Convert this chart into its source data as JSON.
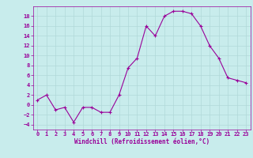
{
  "x": [
    0,
    1,
    2,
    3,
    4,
    5,
    6,
    7,
    8,
    9,
    10,
    11,
    12,
    13,
    14,
    15,
    16,
    17,
    18,
    19,
    20,
    21,
    22,
    23
  ],
  "y": [
    1,
    2,
    -1,
    -0.5,
    -3.5,
    -0.5,
    -0.5,
    -1.5,
    -1.5,
    2,
    7.5,
    9.5,
    16,
    14,
    18,
    19,
    19,
    18.5,
    16,
    12,
    9.5,
    5.5,
    5,
    4.5
  ],
  "line_color": "#990099",
  "marker": "+",
  "marker_size": 3,
  "marker_lw": 0.8,
  "line_width": 0.8,
  "bg_color": "#c8ecec",
  "grid_color": "#b0d8d8",
  "tick_color": "#990099",
  "label_color": "#990099",
  "xlabel": "Windchill (Refroidissement éolien,°C)",
  "xticks": [
    0,
    1,
    2,
    3,
    4,
    5,
    6,
    7,
    8,
    9,
    10,
    11,
    12,
    13,
    14,
    15,
    16,
    17,
    18,
    19,
    20,
    21,
    22,
    23
  ],
  "yticks": [
    -4,
    -2,
    0,
    2,
    4,
    6,
    8,
    10,
    12,
    14,
    16,
    18
  ],
  "ylim": [
    -5,
    20
  ],
  "xlim": [
    -0.5,
    23.5
  ],
  "xlabel_fontsize": 5.5,
  "tick_fontsize": 5.0
}
